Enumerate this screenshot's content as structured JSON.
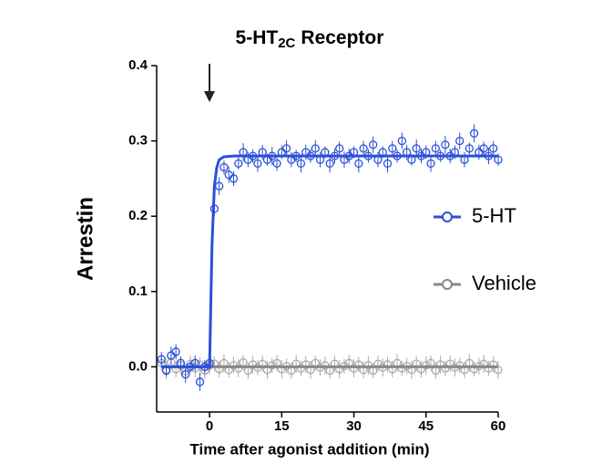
{
  "chart_data": {
    "type": "scatter",
    "title": [
      "5-HT",
      "2C",
      "Receptor"
    ],
    "xlabel": "Time after agonist addition (min)",
    "ylabel": "Arrestin",
    "xlim": [
      -11,
      60
    ],
    "ylim": [
      -0.06,
      0.4
    ],
    "xticks": [
      0,
      15,
      30,
      45,
      60
    ],
    "yticks": [
      {
        "value": 0,
        "label": "0.0"
      },
      0.1,
      0.2,
      0.3,
      0.4
    ],
    "legend": "right",
    "x": [
      -10,
      -9,
      -8,
      -7,
      -6,
      -5,
      -4,
      -3,
      -2,
      -1,
      0,
      1,
      2,
      3,
      4,
      5,
      6,
      7,
      8,
      9,
      10,
      11,
      12,
      13,
      14,
      15,
      16,
      17,
      18,
      19,
      20,
      21,
      22,
      23,
      24,
      25,
      26,
      27,
      28,
      29,
      30,
      31,
      32,
      33,
      34,
      35,
      36,
      37,
      38,
      39,
      40,
      41,
      42,
      43,
      44,
      45,
      46,
      47,
      48,
      49,
      50,
      51,
      52,
      53,
      54,
      55,
      56,
      57,
      58,
      59,
      60
    ],
    "series": [
      {
        "name": "Vehicle",
        "color": "#aaaaaa",
        "line_color": "#888888",
        "values": [
          0.005,
          -0.004,
          0.006,
          -0.003,
          0.002,
          -0.006,
          0.004,
          -0.002,
          0.003,
          -0.005,
          0.002,
          0.004,
          -0.003,
          0.005,
          -0.004,
          0.002,
          -0.002,
          0.006,
          -0.005,
          0.003,
          -0.001,
          0.004,
          -0.004,
          0.002,
          0.005,
          -0.003,
          0.001,
          -0.005,
          0.004,
          -0.002,
          0.003,
          -0.004,
          0.005,
          -0.001,
          0.002,
          -0.005,
          0.004,
          -0.003,
          0.001,
          0.005,
          -0.002,
          0.003,
          -0.004,
          0.002,
          -0.005,
          0.004,
          -0.001,
          0.003,
          -0.003,
          0.005,
          -0.002,
          0.001,
          -0.004,
          0.004,
          -0.003,
          0.002,
          0.005,
          -0.005,
          0.003,
          -0.002,
          0.004,
          -0.001,
          0.002,
          -0.004,
          0.005,
          -0.003,
          0.001,
          0.004,
          -0.002,
          0.003,
          -0.004
        ],
        "errors": [
          0.01,
          0.012,
          0.01,
          0.011,
          0.012,
          0.01,
          0.011,
          0.012,
          0.01,
          0.011,
          0.012,
          0.01,
          0.011,
          0.012,
          0.01,
          0.011,
          0.012,
          0.01,
          0.011,
          0.012,
          0.01,
          0.011,
          0.012,
          0.01,
          0.011,
          0.012,
          0.01,
          0.011,
          0.012,
          0.01,
          0.011,
          0.012,
          0.01,
          0.011,
          0.012,
          0.01,
          0.011,
          0.012,
          0.01,
          0.011,
          0.012,
          0.01,
          0.011,
          0.012,
          0.01,
          0.011,
          0.012,
          0.01,
          0.011,
          0.012,
          0.01,
          0.011,
          0.012,
          0.01,
          0.011,
          0.012,
          0.01,
          0.011,
          0.012,
          0.01,
          0.011,
          0.012,
          0.01,
          0.011,
          0.012,
          0.01,
          0.011,
          0.012,
          0.01,
          0.011,
          0.012
        ],
        "fit_x": [
          -10,
          60
        ],
        "fit_values": [
          0,
          0
        ]
      },
      {
        "name": "5-HT",
        "color": "#2b4fd8",
        "line_color": "#2b4fd8",
        "values": [
          0.01,
          -0.005,
          0.015,
          0.02,
          0.005,
          -0.01,
          0.0,
          0.005,
          -0.02,
          0.0,
          0.005,
          0.21,
          0.24,
          0.265,
          0.255,
          0.25,
          0.27,
          0.285,
          0.275,
          0.28,
          0.27,
          0.285,
          0.275,
          0.28,
          0.27,
          0.285,
          0.29,
          0.275,
          0.28,
          0.27,
          0.285,
          0.28,
          0.29,
          0.275,
          0.285,
          0.27,
          0.28,
          0.29,
          0.275,
          0.28,
          0.285,
          0.27,
          0.29,
          0.28,
          0.295,
          0.275,
          0.285,
          0.27,
          0.29,
          0.28,
          0.3,
          0.285,
          0.275,
          0.29,
          0.28,
          0.285,
          0.27,
          0.29,
          0.28,
          0.295,
          0.28,
          0.285,
          0.3,
          0.275,
          0.29,
          0.31,
          0.285,
          0.29,
          0.28,
          0.29,
          0.275
        ],
        "errors": [
          0.01,
          0.008,
          0.012,
          0.01,
          0.009,
          0.011,
          0.008,
          0.01,
          0.012,
          0.009,
          0.01,
          0.01,
          0.012,
          0.009,
          0.011,
          0.01,
          0.008,
          0.012,
          0.01,
          0.009,
          0.011,
          0.01,
          0.008,
          0.012,
          0.01,
          0.009,
          0.011,
          0.01,
          0.008,
          0.012,
          0.01,
          0.009,
          0.011,
          0.01,
          0.008,
          0.012,
          0.01,
          0.009,
          0.011,
          0.01,
          0.008,
          0.012,
          0.01,
          0.009,
          0.011,
          0.01,
          0.008,
          0.012,
          0.01,
          0.009,
          0.011,
          0.01,
          0.008,
          0.012,
          0.01,
          0.009,
          0.011,
          0.01,
          0.008,
          0.012,
          0.01,
          0.009,
          0.011,
          0.01,
          0.008,
          0.012,
          0.01,
          0.009,
          0.011,
          0.01,
          0.008
        ],
        "fit_x": [
          -10,
          0,
          0.5,
          1,
          1.5,
          2,
          3,
          5,
          60
        ],
        "fit_values": [
          0,
          0,
          0.16,
          0.24,
          0.265,
          0.275,
          0.279,
          0.28,
          0.28
        ]
      }
    ]
  }
}
